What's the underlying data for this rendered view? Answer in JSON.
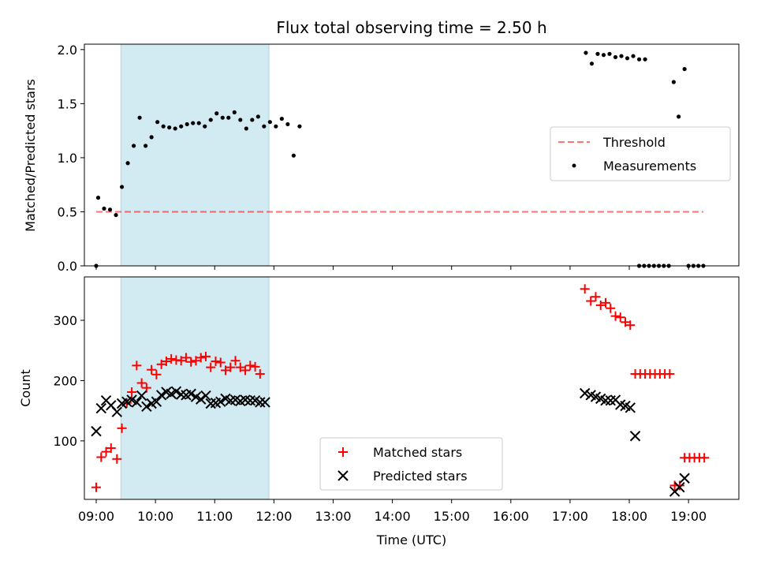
{
  "title": "Flux total observing time = 2.50 h",
  "colors": {
    "shade": "#add8e6",
    "threshold": "#ff0000",
    "measurement": "#000000",
    "matched": "#ff0000",
    "predicted": "#000000"
  },
  "chart_data": [
    {
      "type": "scatter",
      "ylabel": "Matched/Predicted stars",
      "xlim": [
        8.8,
        19.85
      ],
      "ylim": [
        0,
        2.05
      ],
      "yticks": [
        0.0,
        0.5,
        1.0,
        1.5,
        2.0
      ],
      "ytick_labels": [
        "0.0",
        "0.5",
        "1.0",
        "1.5",
        "2.0"
      ],
      "shaded_interval": [
        "09:25",
        "11:55"
      ],
      "legend": {
        "placement": "center-right",
        "entries": [
          "Threshold",
          "Measurements"
        ]
      },
      "threshold": {
        "name": "Threshold",
        "value": 0.5,
        "x_range": [
          "09:00",
          "19:15"
        ],
        "style": "dashed"
      },
      "series": [
        {
          "name": "Measurements",
          "marker": "dot",
          "points": [
            [
              "09:00",
              0.0
            ],
            [
              "09:02",
              0.63
            ],
            [
              "09:08",
              0.53
            ],
            [
              "09:14",
              0.52
            ],
            [
              "09:20",
              0.47
            ],
            [
              "09:26",
              0.73
            ],
            [
              "09:32",
              0.95
            ],
            [
              "09:38",
              1.11
            ],
            [
              "09:44",
              1.37
            ],
            [
              "09:50",
              1.11
            ],
            [
              "09:56",
              1.19
            ],
            [
              "10:02",
              1.33
            ],
            [
              "10:08",
              1.29
            ],
            [
              "10:14",
              1.28
            ],
            [
              "10:20",
              1.27
            ],
            [
              "10:26",
              1.29
            ],
            [
              "10:32",
              1.31
            ],
            [
              "10:38",
              1.32
            ],
            [
              "10:44",
              1.32
            ],
            [
              "10:50",
              1.29
            ],
            [
              "10:56",
              1.35
            ],
            [
              "11:02",
              1.41
            ],
            [
              "11:08",
              1.37
            ],
            [
              "11:14",
              1.37
            ],
            [
              "11:20",
              1.42
            ],
            [
              "11:26",
              1.35
            ],
            [
              "11:32",
              1.27
            ],
            [
              "11:38",
              1.35
            ],
            [
              "11:44",
              1.38
            ],
            [
              "11:50",
              1.29
            ],
            [
              "11:56",
              1.33
            ],
            [
              "12:02",
              1.29
            ],
            [
              "12:08",
              1.36
            ],
            [
              "12:14",
              1.31
            ],
            [
              "12:20",
              1.02
            ],
            [
              "12:26",
              1.29
            ],
            [
              "17:16",
              1.97
            ],
            [
              "17:22",
              1.87
            ],
            [
              "17:28",
              1.96
            ],
            [
              "17:34",
              1.95
            ],
            [
              "17:40",
              1.96
            ],
            [
              "17:46",
              1.93
            ],
            [
              "17:52",
              1.94
            ],
            [
              "17:58",
              1.92
            ],
            [
              "18:04",
              1.94
            ],
            [
              "18:10",
              1.91
            ],
            [
              "18:16",
              1.91
            ],
            [
              "18:10",
              0.0
            ],
            [
              "18:15",
              0.0
            ],
            [
              "18:20",
              0.0
            ],
            [
              "18:25",
              0.0
            ],
            [
              "18:30",
              0.0
            ],
            [
              "18:35",
              0.0
            ],
            [
              "18:40",
              0.0
            ],
            [
              "18:45",
              1.7
            ],
            [
              "18:50",
              1.38
            ],
            [
              "18:56",
              1.82
            ],
            [
              "19:00",
              0.0
            ],
            [
              "19:05",
              0.0
            ],
            [
              "19:10",
              0.0
            ],
            [
              "19:15",
              0.0
            ]
          ]
        }
      ]
    },
    {
      "type": "scatter",
      "xlabel": "Time (UTC)",
      "ylabel": "Count",
      "xlim": [
        8.8,
        19.85
      ],
      "ylim": [
        3,
        372
      ],
      "yticks": [
        100,
        200,
        300
      ],
      "xtick_labels": [
        "09:00",
        "10:00",
        "11:00",
        "12:00",
        "13:00",
        "14:00",
        "15:00",
        "16:00",
        "17:00",
        "18:00",
        "19:00"
      ],
      "shaded_interval": [
        "09:25",
        "11:55"
      ],
      "legend": {
        "placement": "lower-center",
        "entries": [
          "Matched stars",
          "Predicted stars"
        ]
      },
      "series": [
        {
          "name": "Matched stars",
          "marker": "plus",
          "points": [
            [
              "09:00",
              23
            ],
            [
              "09:05",
              73
            ],
            [
              "09:10",
              82
            ],
            [
              "09:15",
              88
            ],
            [
              "09:21",
              70
            ],
            [
              "09:26",
              121
            ],
            [
              "09:31",
              163
            ],
            [
              "09:36",
              181
            ],
            [
              "09:41",
              225
            ],
            [
              "09:46",
              196
            ],
            [
              "09:51",
              188
            ],
            [
              "09:56",
              218
            ],
            [
              "10:01",
              210
            ],
            [
              "10:06",
              227
            ],
            [
              "10:11",
              232
            ],
            [
              "10:16",
              236
            ],
            [
              "10:21",
              234
            ],
            [
              "10:26",
              233
            ],
            [
              "10:31",
              238
            ],
            [
              "10:36",
              231
            ],
            [
              "10:41",
              233
            ],
            [
              "10:46",
              238
            ],
            [
              "10:51",
              240
            ],
            [
              "10:56",
              222
            ],
            [
              "11:01",
              232
            ],
            [
              "11:06",
              230
            ],
            [
              "11:11",
              217
            ],
            [
              "11:16",
              222
            ],
            [
              "11:21",
              233
            ],
            [
              "11:26",
              222
            ],
            [
              "11:31",
              217
            ],
            [
              "11:36",
              225
            ],
            [
              "11:41",
              223
            ],
            [
              "11:46",
              211
            ],
            [
              "17:15",
              352
            ],
            [
              "17:21",
              332
            ],
            [
              "17:26",
              339
            ],
            [
              "17:31",
              325
            ],
            [
              "17:36",
              329
            ],
            [
              "17:41",
              320
            ],
            [
              "17:46",
              307
            ],
            [
              "17:51",
              305
            ],
            [
              "17:56",
              297
            ],
            [
              "18:01",
              292
            ],
            [
              "18:06",
              211
            ],
            [
              "18:11",
              211
            ],
            [
              "18:16",
              211
            ],
            [
              "18:21",
              211
            ],
            [
              "18:26",
              211
            ],
            [
              "18:31",
              211
            ],
            [
              "18:36",
              211
            ],
            [
              "18:41",
              211
            ],
            [
              "18:46",
              26
            ],
            [
              "18:51",
              26
            ],
            [
              "18:56",
              72
            ],
            [
              "19:01",
              72
            ],
            [
              "19:06",
              72
            ],
            [
              "19:11",
              72
            ],
            [
              "19:16",
              72
            ]
          ]
        },
        {
          "name": "Predicted stars",
          "marker": "x",
          "points": [
            [
              "09:00",
              116
            ],
            [
              "09:05",
              154
            ],
            [
              "09:10",
              167
            ],
            [
              "09:15",
              159
            ],
            [
              "09:21",
              148
            ],
            [
              "09:26",
              162
            ],
            [
              "09:31",
              165
            ],
            [
              "09:36",
              168
            ],
            [
              "09:41",
              164
            ],
            [
              "09:46",
              175
            ],
            [
              "09:51",
              157
            ],
            [
              "09:56",
              162
            ],
            [
              "10:01",
              165
            ],
            [
              "10:06",
              176
            ],
            [
              "10:11",
              181
            ],
            [
              "10:16",
              178
            ],
            [
              "10:21",
              182
            ],
            [
              "10:26",
              177
            ],
            [
              "10:31",
              176
            ],
            [
              "10:36",
              178
            ],
            [
              "10:41",
              173
            ],
            [
              "10:46",
              169
            ],
            [
              "10:51",
              175
            ],
            [
              "10:56",
              162
            ],
            [
              "11:01",
              163
            ],
            [
              "11:06",
              165
            ],
            [
              "11:11",
              170
            ],
            [
              "11:16",
              167
            ],
            [
              "11:21",
              168
            ],
            [
              "11:26",
              166
            ],
            [
              "11:31",
              168
            ],
            [
              "11:36",
              167
            ],
            [
              "11:41",
              167
            ],
            [
              "11:46",
              164
            ],
            [
              "11:51",
              164
            ],
            [
              "17:15",
              179
            ],
            [
              "17:21",
              176
            ],
            [
              "17:26",
              173
            ],
            [
              "17:31",
              170
            ],
            [
              "17:36",
              167
            ],
            [
              "17:41",
              167
            ],
            [
              "17:46",
              168
            ],
            [
              "17:51",
              160
            ],
            [
              "17:56",
              158
            ],
            [
              "18:01",
              155
            ],
            [
              "18:06",
              108
            ],
            [
              "18:46",
              16
            ],
            [
              "18:51",
              23
            ],
            [
              "18:56",
              38
            ]
          ]
        }
      ]
    }
  ]
}
